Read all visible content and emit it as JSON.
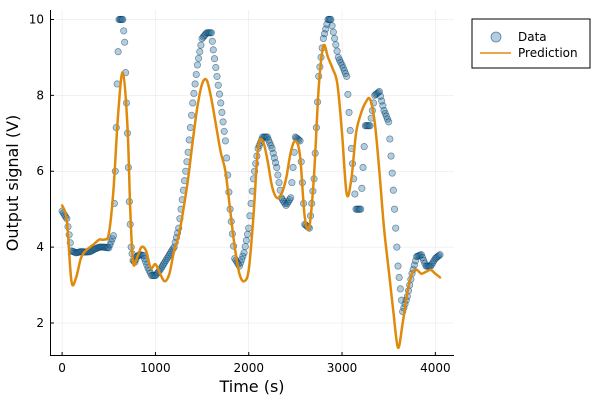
{
  "chart_data": {
    "type": "scatter",
    "xlabel": "Time (s)",
    "ylabel": "Output signal (V)",
    "xlim": [
      -130,
      4200
    ],
    "ylim": [
      1.13,
      10.25
    ],
    "x_ticks": [
      0,
      1000,
      2000,
      3000,
      4000
    ],
    "y_ticks": [
      2,
      4,
      6,
      8,
      10
    ],
    "x_tick_labels": [
      "0",
      "1000",
      "2000",
      "3000",
      "4000"
    ],
    "y_tick_labels": [
      "2",
      "4",
      "6",
      "8",
      "10"
    ],
    "grid": true,
    "legend_position": "top-right",
    "series": [
      {
        "name": "Data",
        "kind": "scatter",
        "color": "#1f6fa0",
        "x": [
          0,
          50,
          100,
          150,
          200,
          250,
          300,
          350,
          400,
          450,
          500,
          550,
          570,
          590,
          610,
          630,
          650,
          670,
          700,
          720,
          740,
          760,
          780,
          800,
          830,
          870,
          920,
          960,
          1000,
          1050,
          1100,
          1150,
          1200,
          1250,
          1300,
          1350,
          1400,
          1450,
          1500,
          1550,
          1600,
          1620,
          1660,
          1700,
          1750,
          1800,
          1850,
          1900,
          1950,
          2000,
          2050,
          2100,
          2150,
          2200,
          2250,
          2300,
          2350,
          2400,
          2450,
          2500,
          2550,
          2600,
          2650,
          2700,
          2750,
          2800,
          2850,
          2880,
          2920,
          2960,
          3000,
          3050,
          3100,
          3150,
          3200,
          3250,
          3300,
          3350,
          3400,
          3450,
          3500,
          3550,
          3600,
          3650,
          3700,
          3750,
          3800,
          3850,
          3900,
          3950,
          4000,
          4050
        ],
        "y": [
          4.95,
          4.75,
          3.9,
          3.85,
          3.88,
          3.87,
          3.88,
          3.95,
          4.0,
          4.0,
          3.98,
          4.3,
          6.0,
          8.3,
          10.0,
          10.0,
          10.0,
          9.4,
          7.0,
          5.2,
          4.0,
          3.65,
          3.6,
          3.75,
          3.8,
          3.78,
          3.45,
          3.25,
          3.25,
          3.4,
          3.6,
          3.8,
          4.0,
          4.5,
          5.5,
          6.5,
          7.8,
          8.8,
          9.5,
          9.65,
          9.65,
          9.2,
          8.5,
          7.8,
          6.8,
          5.0,
          3.7,
          3.5,
          3.85,
          4.5,
          5.8,
          6.6,
          6.9,
          6.9,
          6.6,
          6.1,
          5.3,
          5.1,
          5.3,
          6.9,
          6.8,
          4.6,
          4.5,
          5.8,
          8.5,
          9.5,
          10.0,
          10.0,
          9.5,
          9.0,
          8.8,
          8.5,
          6.6,
          5.0,
          5.0,
          7.2,
          7.2,
          8.0,
          8.1,
          7.6,
          7.3,
          5.5,
          3.5,
          2.3,
          2.7,
          3.3,
          3.75,
          3.8,
          3.5,
          3.5,
          3.7,
          3.8
        ]
      },
      {
        "name": "Prediction",
        "kind": "line",
        "color": "#e08a0b",
        "x": [
          0,
          50,
          100,
          150,
          200,
          250,
          300,
          350,
          400,
          450,
          500,
          550,
          600,
          650,
          700,
          730,
          760,
          800,
          850,
          900,
          950,
          1000,
          1050,
          1100,
          1150,
          1200,
          1250,
          1300,
          1350,
          1400,
          1450,
          1500,
          1550,
          1600,
          1650,
          1700,
          1750,
          1800,
          1850,
          1900,
          1950,
          2000,
          2050,
          2100,
          2150,
          2200,
          2250,
          2300,
          2350,
          2400,
          2450,
          2500,
          2550,
          2600,
          2650,
          2700,
          2750,
          2800,
          2850,
          2900,
          2950,
          3000,
          3050,
          3100,
          3150,
          3200,
          3250,
          3300,
          3350,
          3400,
          3450,
          3500,
          3550,
          3600,
          3650,
          3700,
          3750,
          3800,
          3850,
          3900,
          3950,
          4000,
          4050
        ],
        "y": [
          5.1,
          4.7,
          3.1,
          3.2,
          3.7,
          3.9,
          4.0,
          4.1,
          4.2,
          4.2,
          4.35,
          5.5,
          7.5,
          8.6,
          7.2,
          5.0,
          3.6,
          3.7,
          4.0,
          3.9,
          3.45,
          3.55,
          3.3,
          3.1,
          3.3,
          3.9,
          4.3,
          5.0,
          5.8,
          6.8,
          7.7,
          8.3,
          8.4,
          7.9,
          7.2,
          6.5,
          6.0,
          5.0,
          4.0,
          3.3,
          3.1,
          3.4,
          4.8,
          6.6,
          6.8,
          6.3,
          5.6,
          5.3,
          5.4,
          5.8,
          6.5,
          6.8,
          6.4,
          4.8,
          4.55,
          5.9,
          8.2,
          9.3,
          9.0,
          8.7,
          8.3,
          7.0,
          5.4,
          5.8,
          7.0,
          7.5,
          7.8,
          7.9,
          7.3,
          6.0,
          4.5,
          3.4,
          2.3,
          1.35,
          2.0,
          2.8,
          3.3,
          3.4,
          3.3,
          3.35,
          3.4,
          3.3,
          3.2
        ]
      }
    ]
  }
}
